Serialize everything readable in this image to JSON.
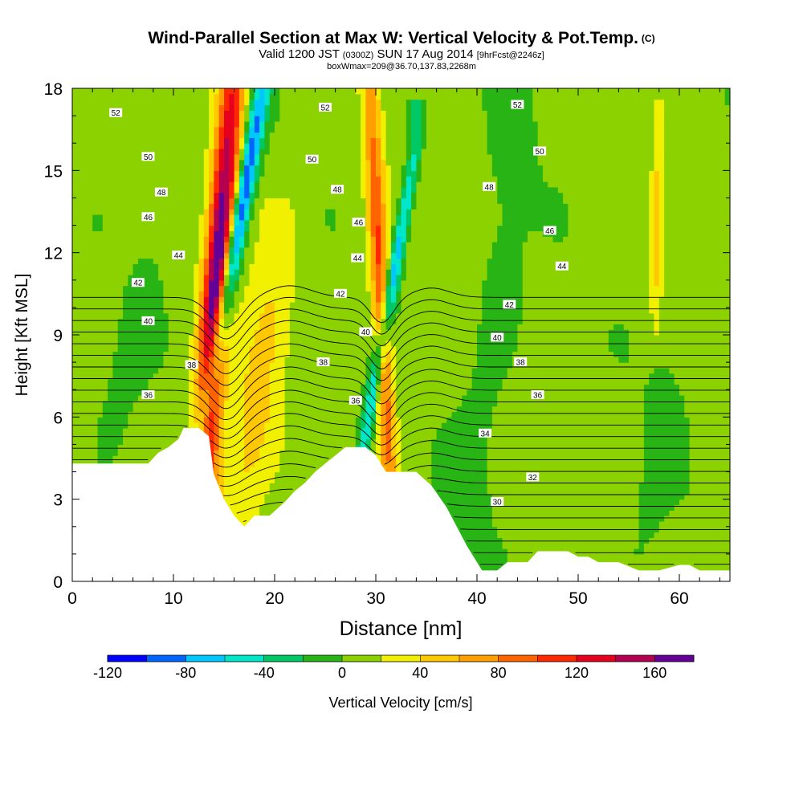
{
  "header": {
    "title": "Wind-Parallel Section at Max W: Vertical Velocity & Pot.Temp.",
    "title_mark": "(C)",
    "valid_prefix": "Valid 1200 JST",
    "valid_utc": "(0300Z)",
    "valid_date": "SUN 17 Aug 2014",
    "forecast": "[9hrFcst@2246z]",
    "box_info": "boxWmax=209@36.70,137.83,2268m"
  },
  "chart_data": {
    "type": "heatmap",
    "xlabel": "Distance [nm]",
    "ylabel": "Height [Kft MSL]",
    "xlim": [
      0,
      65
    ],
    "ylim": [
      0,
      18
    ],
    "x_ticks": [
      "0",
      "10",
      "20",
      "30",
      "40",
      "50",
      "60"
    ],
    "y_ticks": [
      "0",
      "3",
      "6",
      "9",
      "12",
      "15",
      "18"
    ],
    "colorbar": {
      "label": "Vertical Velocity [cm/s]",
      "ticks": [
        "-120",
        "-80",
        "-40",
        "0",
        "40",
        "80",
        "120",
        "160"
      ],
      "min": -120,
      "max": 180,
      "step": 20,
      "colors": [
        "#0000ff",
        "#0064ff",
        "#00c8ff",
        "#00e6c8",
        "#00c864",
        "#28b414",
        "#8cd200",
        "#f0f000",
        "#ffc800",
        "#ffa000",
        "#ff6400",
        "#ff2800",
        "#e6001e",
        "#b40050",
        "#640096"
      ]
    },
    "terrain_kft": [
      [
        0,
        4.3
      ],
      [
        7.5,
        4.3
      ],
      [
        8.5,
        4.7
      ],
      [
        9.5,
        4.9
      ],
      [
        10.5,
        5.2
      ],
      [
        11,
        5.6
      ],
      [
        12.5,
        5.6
      ],
      [
        13.5,
        5.3
      ],
      [
        14,
        3.9
      ],
      [
        15,
        3.0
      ],
      [
        16,
        2.4
      ],
      [
        17,
        2.0
      ],
      [
        18,
        2.4
      ],
      [
        19.5,
        2.4
      ],
      [
        21,
        2.9
      ],
      [
        22,
        3.3
      ],
      [
        23,
        3.6
      ],
      [
        24,
        4.0
      ],
      [
        25,
        4.3
      ],
      [
        26,
        4.6
      ],
      [
        27,
        4.9
      ],
      [
        29,
        4.9
      ],
      [
        30,
        4.6
      ],
      [
        31,
        4.0
      ],
      [
        34,
        4.0
      ],
      [
        35.5,
        3.5
      ],
      [
        37,
        2.7
      ],
      [
        38,
        2.0
      ],
      [
        39,
        1.3
      ],
      [
        40,
        0.7
      ],
      [
        40.5,
        0.4
      ],
      [
        42,
        0.4
      ],
      [
        43,
        0.7
      ],
      [
        45,
        0.7
      ],
      [
        46,
        1.1
      ],
      [
        49,
        1.1
      ],
      [
        50,
        0.9
      ],
      [
        51,
        0.9
      ],
      [
        52,
        0.7
      ],
      [
        54,
        0.7
      ],
      [
        56,
        0.4
      ],
      [
        58,
        0.4
      ],
      [
        60,
        0.6
      ],
      [
        61,
        0.6
      ],
      [
        62,
        0.4
      ],
      [
        65,
        0.4
      ]
    ],
    "updrafts": [
      {
        "x0": 13.2,
        "x1": 15.8,
        "top": 18.0,
        "peak": 190,
        "width": 1.3,
        "ybot": 3.0
      },
      {
        "x0": 16.4,
        "x1": 20.5,
        "top": 12.5,
        "peak": 40,
        "width": 2.3,
        "ybot": 3.0
      },
      {
        "x0": 31.3,
        "x1": 29.5,
        "top": 18.0,
        "peak": 95,
        "width": 0.9,
        "ybot": 4.0
      },
      {
        "x0": 57.2,
        "x1": 58.0,
        "top": 16.0,
        "peak": 42,
        "width": 0.6,
        "ybot": 10.5
      }
    ],
    "downdrafts": [
      {
        "x0": 12.8,
        "x1": 18.8,
        "top": 18.0,
        "peak": -125,
        "width": 0.9,
        "ybot": 5.0
      },
      {
        "x0": 28.8,
        "x1": 34.0,
        "top": 16.0,
        "peak": -85,
        "width": 0.7,
        "ybot": 5.0
      },
      {
        "x0": 3.0,
        "x1": 9.0,
        "top": 13.5,
        "peak": -12,
        "width": 2.2,
        "ybot": 5.0
      },
      {
        "x0": 39.0,
        "x1": 44.0,
        "top": 17.0,
        "peak": -14,
        "width": 3.0,
        "ybot": 1.0
      },
      {
        "x0": 56.0,
        "x1": 62.0,
        "top": 14.0,
        "peak": -10,
        "width": 2.5,
        "ybot": 1.0
      }
    ],
    "theta_levels": [
      29,
      30,
      31,
      32,
      33,
      34,
      35,
      36,
      37,
      38,
      39,
      40,
      41,
      42,
      43,
      44,
      45,
      46,
      47,
      48,
      49,
      50,
      51,
      52,
      53
    ],
    "theta_labels": [
      {
        "text": "52",
        "x": 4.3,
        "y": 17.1
      },
      {
        "text": "50",
        "x": 7.5,
        "y": 15.5
      },
      {
        "text": "48",
        "x": 8.8,
        "y": 14.2
      },
      {
        "text": "46",
        "x": 7.5,
        "y": 13.3
      },
      {
        "text": "44",
        "x": 10.5,
        "y": 11.9
      },
      {
        "text": "42",
        "x": 6.5,
        "y": 10.9
      },
      {
        "text": "40",
        "x": 7.5,
        "y": 9.5
      },
      {
        "text": "38",
        "x": 11.8,
        "y": 7.9
      },
      {
        "text": "36",
        "x": 7.5,
        "y": 6.8
      },
      {
        "text": "52",
        "x": 25.0,
        "y": 17.3
      },
      {
        "text": "50",
        "x": 23.7,
        "y": 15.4
      },
      {
        "text": "48",
        "x": 26.2,
        "y": 14.3
      },
      {
        "text": "46",
        "x": 28.3,
        "y": 13.1
      },
      {
        "text": "44",
        "x": 28.2,
        "y": 11.8
      },
      {
        "text": "42",
        "x": 26.5,
        "y": 10.5
      },
      {
        "text": "40",
        "x": 29.0,
        "y": 9.1
      },
      {
        "text": "38",
        "x": 24.8,
        "y": 8.0
      },
      {
        "text": "36",
        "x": 28.0,
        "y": 6.6
      },
      {
        "text": "52",
        "x": 44.0,
        "y": 17.4
      },
      {
        "text": "50",
        "x": 46.2,
        "y": 15.7
      },
      {
        "text": "48",
        "x": 41.2,
        "y": 14.4
      },
      {
        "text": "46",
        "x": 47.2,
        "y": 12.8
      },
      {
        "text": "44",
        "x": 48.4,
        "y": 11.5
      },
      {
        "text": "42",
        "x": 43.2,
        "y": 10.1
      },
      {
        "text": "40",
        "x": 42.0,
        "y": 8.9
      },
      {
        "text": "38",
        "x": 44.3,
        "y": 8.0
      },
      {
        "text": "36",
        "x": 46.0,
        "y": 6.8
      },
      {
        "text": "34",
        "x": 40.8,
        "y": 5.4
      },
      {
        "text": "32",
        "x": 45.5,
        "y": 3.8
      },
      {
        "text": "30",
        "x": 42.0,
        "y": 2.9
      }
    ]
  }
}
